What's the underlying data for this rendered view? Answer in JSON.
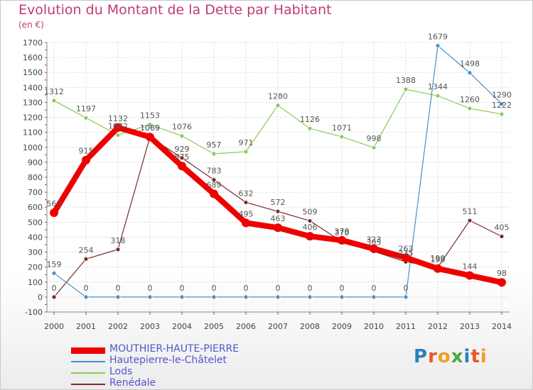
{
  "title": "Evolution du Montant de la Dette par Habitant",
  "subtitle": "(en €)",
  "logo": {
    "text": "Proxiti",
    "letter_colors": [
      "#2e7fc0",
      "#e8562a",
      "#f0a020",
      "#4aa84a",
      "#2e7fc0",
      "#e8562a",
      "#f0a020"
    ]
  },
  "chart_data": {
    "type": "line",
    "title": "Evolution du Montant de la Dette par Habitant",
    "ylabel": "(en €)",
    "xlabel": "",
    "x": [
      "2000",
      "2001",
      "2002",
      "2003",
      "2004",
      "2005",
      "2006",
      "2007",
      "2008",
      "2009",
      "2010",
      "2011",
      "2012",
      "2013",
      "2014"
    ],
    "ylim": [
      -100,
      1700
    ],
    "yticks": [
      -100,
      0,
      100,
      200,
      300,
      400,
      500,
      600,
      700,
      800,
      900,
      1000,
      1100,
      1200,
      1300,
      1400,
      1500,
      1600,
      1700
    ],
    "grid": true,
    "legend_position": "bottom-left",
    "series": [
      {
        "name": "MOUTHIER-HAUTE-PIERRE",
        "color": "#ee0000",
        "values": [
          563,
          915,
          1132,
          1069,
          875,
          689,
          495,
          463,
          406,
          379,
          323,
          263,
          190,
          144,
          98
        ]
      },
      {
        "name": "Hautepierre-le-Châtelet",
        "color": "#4a90c8",
        "values": [
          159,
          0,
          0,
          0,
          0,
          0,
          0,
          0,
          0,
          0,
          0,
          0,
          1679,
          1498,
          1290
        ]
      },
      {
        "name": "Lods",
        "color": "#88cc55",
        "values": [
          1312,
          1197,
          1082,
          1153,
          1076,
          957,
          971,
          1280,
          1126,
          1071,
          998,
          1388,
          1344,
          1260,
          1222
        ]
      },
      {
        "name": "Renédale",
        "color": "#7a2a2a",
        "values": [
          0,
          254,
          318,
          1069,
          929,
          783,
          632,
          572,
          509,
          370,
          305,
          235,
          199,
          511,
          405
        ]
      }
    ]
  }
}
